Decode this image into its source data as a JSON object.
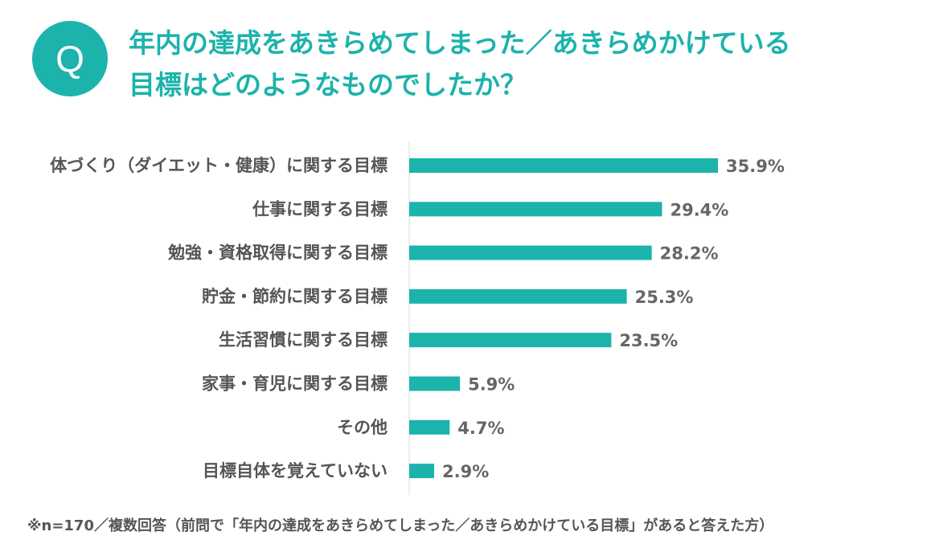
{
  "badge": "Q",
  "title": {
    "line1": "年内の達成をあきらめてしまった／あきらめかけている",
    "line2": "目標はどのようなものでしたか？"
  },
  "colors": {
    "accent": "#1bb3ab",
    "bar": "#1bb3ab",
    "axis": "#d9d9d9",
    "label": "#555555"
  },
  "chart_data": {
    "type": "bar",
    "orientation": "horizontal",
    "categories": [
      "体づくり（ダイエット・健康）に関する目標",
      "仕事に関する目標",
      "勉強・資格取得に関する目標",
      "貯金・節約に関する目標",
      "生活習慣に関する目標",
      "家事・育児に関する目標",
      "その他",
      "目標自体を覚えていない"
    ],
    "values": [
      35.9,
      29.4,
      28.2,
      25.3,
      23.5,
      5.9,
      4.7,
      2.9
    ],
    "value_labels": [
      "35.9%",
      "29.4%",
      "28.2%",
      "25.3%",
      "23.5%",
      "5.9%",
      "4.7%",
      "2.9%"
    ],
    "unit": "%",
    "xlim": [
      0,
      40
    ],
    "grid": false,
    "title": "年内の達成をあきらめてしまった／あきらめかけている目標はどのようなものでしたか？"
  },
  "footnote": "※n=170／複数回答（前問で「年内の達成をあきらめてしまった／あきらめかけている目標」があると答えた方）"
}
